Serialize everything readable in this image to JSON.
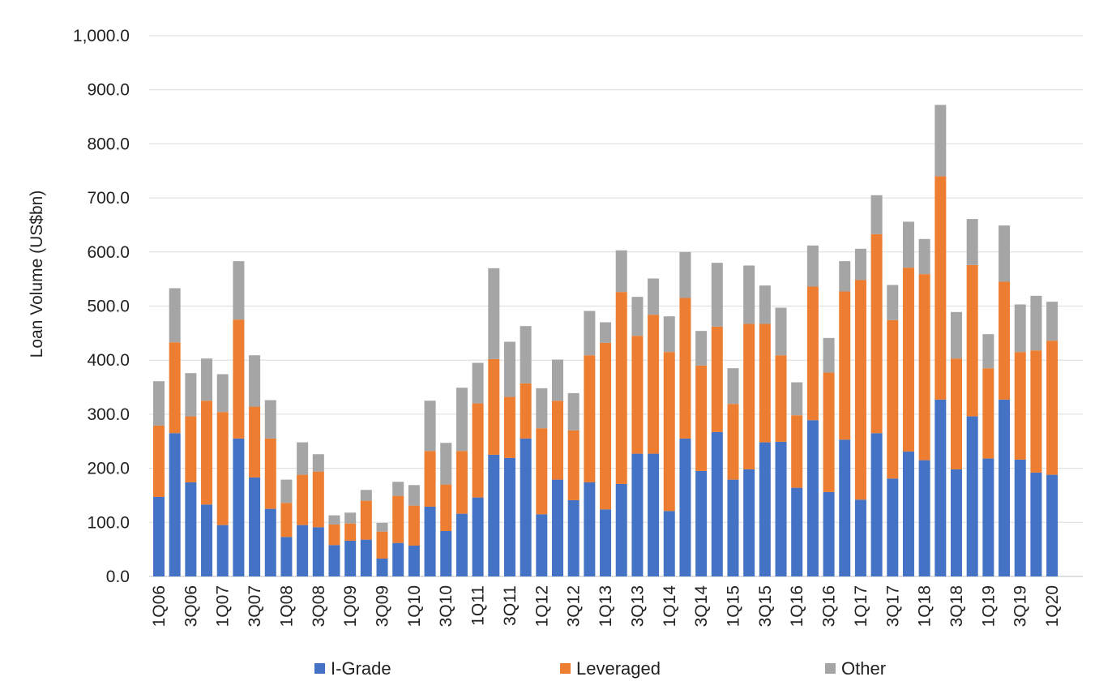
{
  "chart_data": {
    "type": "bar",
    "stacked": true,
    "ylabel": "Loan Volume (US$bn)",
    "xlabel": "",
    "ylim": [
      0,
      1000
    ],
    "ytick_step": 100,
    "ytick_labels": [
      "0.0",
      "100.0",
      "200.0",
      "300.0",
      "400.0",
      "500.0",
      "600.0",
      "700.0",
      "800.0",
      "900.0",
      "1,000.0"
    ],
    "grid": "horizontal",
    "legend_position": "bottom",
    "categories": [
      "1Q06",
      "2Q06",
      "3Q06",
      "4Q06",
      "1Q07",
      "2Q07",
      "3Q07",
      "4Q07",
      "1Q08",
      "2Q08",
      "3Q08",
      "4Q08",
      "1Q09",
      "2Q09",
      "3Q09",
      "4Q09",
      "1Q10",
      "2Q10",
      "3Q10",
      "4Q10",
      "1Q11",
      "2Q11",
      "3Q11",
      "4Q11",
      "1Q12",
      "2Q12",
      "3Q12",
      "4Q12",
      "1Q13",
      "2Q13",
      "3Q13",
      "4Q13",
      "1Q14",
      "2Q14",
      "3Q14",
      "4Q14",
      "1Q15",
      "2Q15",
      "3Q15",
      "4Q15",
      "1Q16",
      "2Q16",
      "3Q16",
      "4Q16",
      "1Q17",
      "2Q17",
      "3Q17",
      "4Q17",
      "1Q18",
      "2Q18",
      "3Q18",
      "4Q18",
      "1Q19",
      "2Q19",
      "3Q19",
      "4Q19",
      "1Q20"
    ],
    "x_tick_labels_shown": [
      "1Q06",
      "3Q06",
      "1Q07",
      "3Q07",
      "1Q08",
      "3Q08",
      "1Q09",
      "3Q09",
      "1Q10",
      "3Q10",
      "1Q11",
      "3Q11",
      "1Q12",
      "3Q12",
      "1Q13",
      "3Q13",
      "1Q14",
      "3Q14",
      "1Q15",
      "3Q15",
      "1Q16",
      "3Q16",
      "1Q17",
      "3Q17",
      "1Q18",
      "3Q18",
      "1Q19",
      "3Q19",
      "1Q20"
    ],
    "series": [
      {
        "name": "I-Grade",
        "color": "#4472C4",
        "values": [
          147,
          265,
          174,
          133,
          95,
          255,
          183,
          125,
          73,
          95,
          91,
          58,
          66,
          68,
          33,
          62,
          57,
          129,
          84,
          116,
          146,
          225,
          219,
          255,
          115,
          179,
          141,
          174,
          124,
          171,
          227,
          227,
          121,
          255,
          195,
          267,
          179,
          198,
          248,
          249,
          164,
          289,
          156,
          253,
          142,
          265,
          181,
          231,
          215,
          327,
          198,
          296,
          218,
          327,
          216,
          192,
          188
        ]
      },
      {
        "name": "Leveraged",
        "color": "#ED7D31",
        "values": [
          132,
          168,
          122,
          192,
          209,
          220,
          131,
          130,
          63,
          93,
          103,
          38,
          32,
          72,
          50,
          87,
          74,
          103,
          86,
          116,
          174,
          177,
          113,
          102,
          159,
          146,
          129,
          235,
          308,
          355,
          218,
          257,
          294,
          260,
          195,
          195,
          140,
          269,
          219,
          160,
          134,
          247,
          221,
          274,
          406,
          368,
          293,
          340,
          344,
          413,
          205,
          280,
          167,
          218,
          199,
          226,
          248
        ]
      },
      {
        "name": "Other",
        "color": "#A5A5A5",
        "values": [
          82,
          100,
          80,
          78,
          70,
          108,
          95,
          71,
          43,
          60,
          32,
          17,
          20,
          20,
          16,
          26,
          38,
          93,
          77,
          117,
          75,
          168,
          102,
          106,
          74,
          76,
          69,
          82,
          38,
          77,
          72,
          67,
          66,
          85,
          64,
          118,
          66,
          108,
          71,
          88,
          61,
          76,
          64,
          56,
          58,
          72,
          65,
          85,
          65,
          132,
          86,
          85,
          63,
          104,
          88,
          101,
          72
        ]
      }
    ]
  }
}
